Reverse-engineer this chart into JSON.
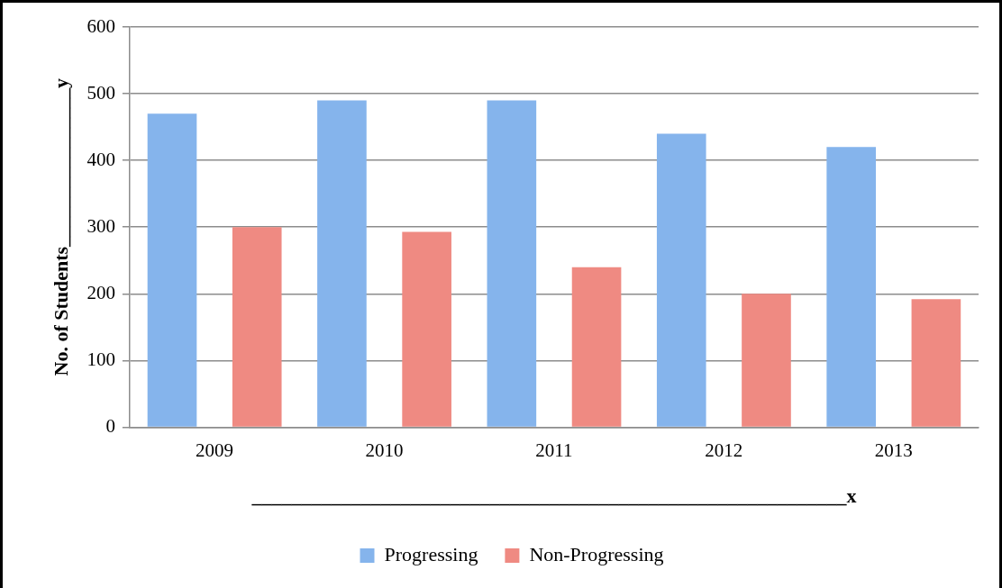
{
  "chart_data": {
    "type": "bar",
    "categories": [
      "2009",
      "2010",
      "2011",
      "2012",
      "2013"
    ],
    "series": [
      {
        "name": "Progressing",
        "color": "#85b4ec",
        "values": [
          470,
          490,
          490,
          440,
          420
        ]
      },
      {
        "name": "Non-Progressing",
        "color": "#ef8a82",
        "values": [
          300,
          293,
          240,
          200,
          192
        ]
      }
    ],
    "ylabel": "No. of Students________________y",
    "xlabel": "____________________________________________________________x",
    "ylim": [
      0,
      600
    ],
    "yticks": [
      0,
      100,
      200,
      300,
      400,
      500,
      600
    ],
    "grid": "y",
    "legend": "bottom"
  }
}
